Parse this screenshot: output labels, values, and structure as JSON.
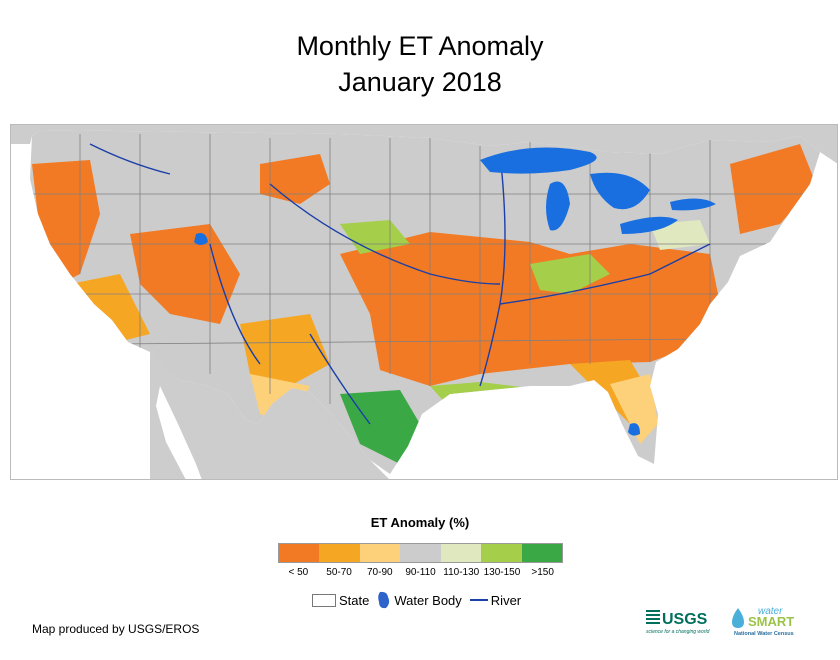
{
  "title_line1": "Monthly ET Anomaly",
  "title_line2": "January 2018",
  "legend": {
    "title": "ET Anomaly (%)",
    "classes": [
      {
        "label": "< 50",
        "color": "#f27a24"
      },
      {
        "label": "50-70",
        "color": "#f5a623"
      },
      {
        "label": "70-90",
        "color": "#fdd07a"
      },
      {
        "label": "90-110",
        "color": "#cccccc"
      },
      {
        "label": "110-130",
        "color": "#dfe8bf"
      },
      {
        "label": "130-150",
        "color": "#a5cf4a"
      },
      {
        "label": ">150",
        "color": "#3aa845"
      }
    ]
  },
  "symbols": {
    "state_label": "State",
    "water_label": "Water Body",
    "river_label": "River",
    "water_color": "#1a6fe0",
    "river_color": "#1a3fa8"
  },
  "credit": "Map produced by USGS/EROS",
  "logos": {
    "usgs_text": "USGS",
    "usgs_tagline": "science for a changing world",
    "watersmart_top": "water",
    "watersmart_main": "SMART",
    "watersmart_sub": "National Water Census"
  }
}
